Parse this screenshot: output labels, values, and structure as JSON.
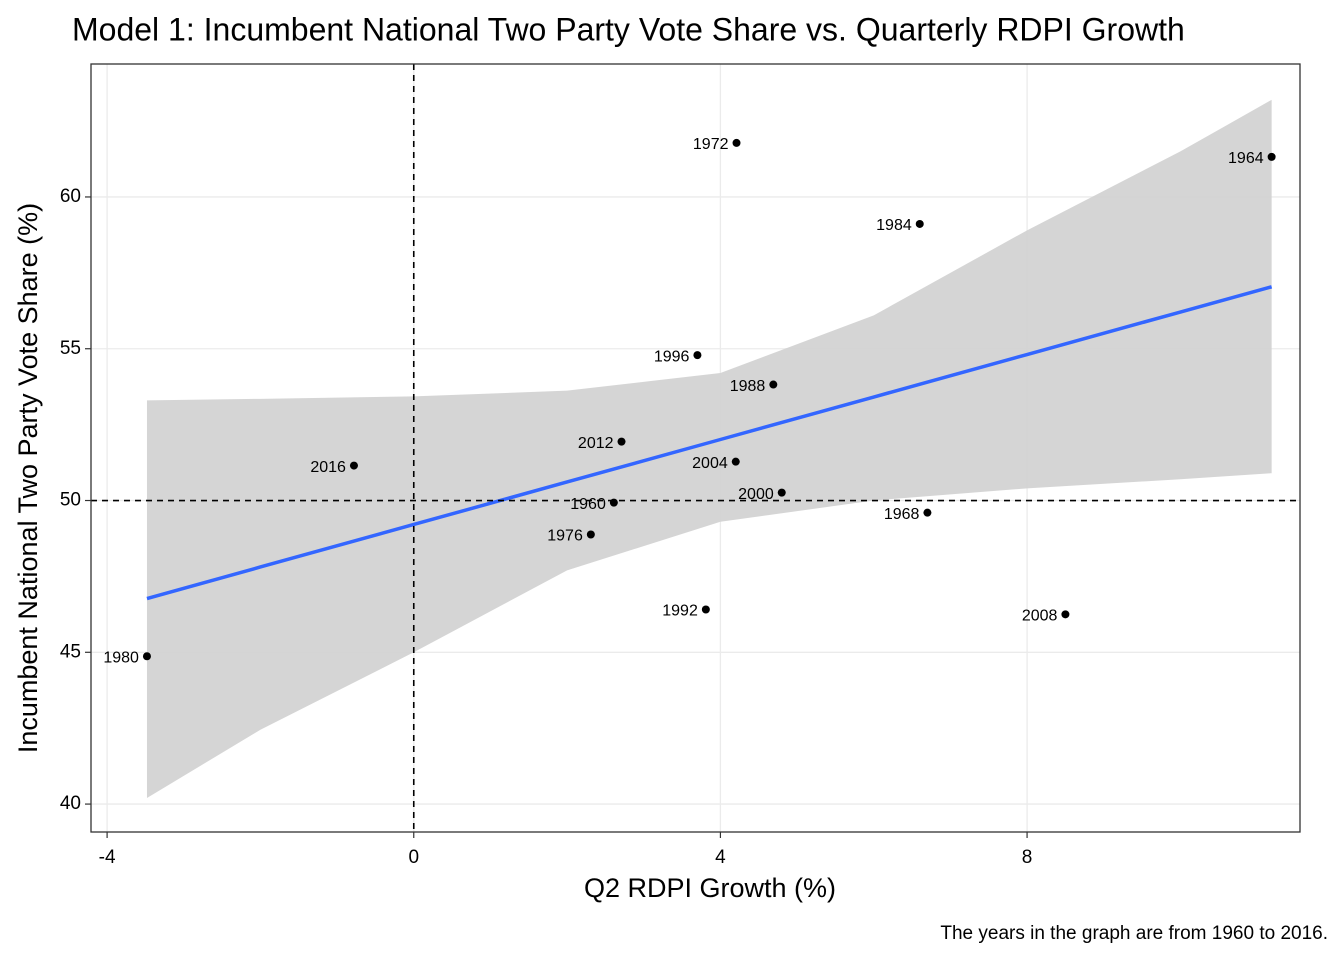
{
  "chart_data": {
    "type": "scatter",
    "title": "Model 1: Incumbent National Two Party Vote Share vs. Quarterly RDPI Growth",
    "x_label": "Q2 RDPI Growth (%)",
    "y_label": "Incumbent National Two Party Vote Share (%)",
    "caption": "The years in the graph are from 1960 to 2016.",
    "xlim": [
      -4.21,
      11.56
    ],
    "ylim": [
      39.08,
      64.38
    ],
    "xticks": [
      -4,
      0,
      4,
      8
    ],
    "yticks": [
      40,
      45,
      50,
      55,
      60
    ],
    "grid": true,
    "point_color": "#000000",
    "points": {
      "labels": [
        "1972",
        "1964",
        "1984",
        "1996",
        "1988",
        "2012",
        "2016",
        "2004",
        "2000",
        "1960",
        "1968",
        "1976",
        "1992",
        "2008",
        "1980"
      ],
      "x": [
        4.21,
        11.19,
        6.6,
        3.7,
        4.69,
        2.71,
        -0.78,
        4.2,
        4.8,
        2.61,
        6.7,
        2.31,
        3.81,
        8.5,
        -3.48
      ],
      "y": [
        61.78,
        61.32,
        59.11,
        54.79,
        53.82,
        51.94,
        51.15,
        51.28,
        50.26,
        49.93,
        49.6,
        48.88,
        46.41,
        46.25,
        44.87
      ]
    },
    "smooth": {
      "color": "#3366ff",
      "band_color": "#d3d3d3",
      "x": [
        -3.48,
        -2,
        0,
        2,
        4,
        6,
        8,
        10,
        11.19
      ],
      "fit": [
        46.77,
        47.81,
        49.21,
        50.61,
        52.01,
        53.41,
        54.81,
        56.21,
        57.04
      ],
      "lower": [
        40.2,
        42.45,
        45.0,
        47.7,
        49.3,
        50.0,
        50.4,
        50.7,
        50.9
      ],
      "upper": [
        53.3,
        53.35,
        53.43,
        53.62,
        54.2,
        56.1,
        58.9,
        61.5,
        63.2
      ]
    },
    "vlines": [
      0
    ],
    "hlines": [
      50
    ]
  }
}
